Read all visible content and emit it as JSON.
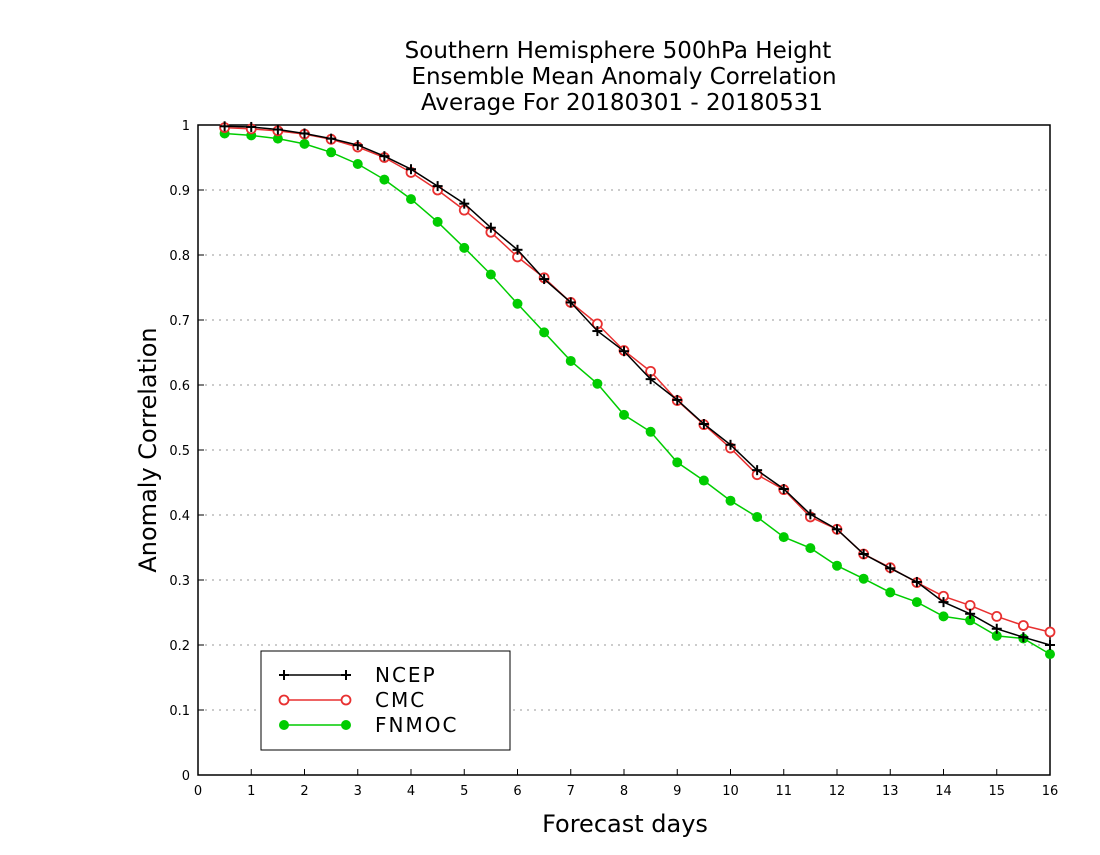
{
  "chart_data": {
    "type": "line",
    "title": [
      "Southern Hemisphere 500hPa Height",
      "Ensemble Mean Anomaly Correlation",
      "Average For 20180301 - 20180531"
    ],
    "xlabel": "Forecast days",
    "ylabel": "Anomaly Correlation",
    "xlim": [
      0,
      16
    ],
    "ylim": [
      0,
      1
    ],
    "xticks": [
      0,
      1,
      2,
      3,
      4,
      5,
      6,
      7,
      8,
      9,
      10,
      11,
      12,
      13,
      14,
      15,
      16
    ],
    "yticks": [
      0,
      0.1,
      0.2,
      0.3,
      0.4,
      0.5,
      0.6,
      0.7,
      0.8,
      0.9,
      1
    ],
    "ytick_labels": [
      "0",
      "0.1",
      "0.2",
      "0.3",
      "0.4",
      "0.5",
      "0.6",
      "0.7",
      "0.8",
      "0.9",
      "1"
    ],
    "grid": "horizontal dotted",
    "legend_position": "bottom-left",
    "x": [
      0.5,
      1,
      1.5,
      2,
      2.5,
      3,
      3.5,
      4,
      4.5,
      5,
      5.5,
      6,
      6.5,
      7,
      7.5,
      8,
      8.5,
      9,
      9.5,
      10,
      10.5,
      11,
      11.5,
      12,
      12.5,
      13,
      13.5,
      14,
      14.5,
      15,
      15.5,
      16
    ],
    "series": [
      {
        "name": "NCEP",
        "color": "#000000",
        "marker": "plus",
        "values": [
          0.998,
          0.997,
          0.993,
          0.987,
          0.979,
          0.969,
          0.952,
          0.932,
          0.906,
          0.879,
          0.842,
          0.808,
          0.763,
          0.727,
          0.683,
          0.652,
          0.609,
          0.577,
          0.54,
          0.508,
          0.469,
          0.44,
          0.401,
          0.378,
          0.34,
          0.318,
          0.297,
          0.266,
          0.248,
          0.225,
          0.212,
          0.2
        ]
      },
      {
        "name": "CMC",
        "color": "#e83030",
        "marker": "open-circle",
        "values": [
          0.996,
          0.994,
          0.991,
          0.986,
          0.978,
          0.966,
          0.95,
          0.927,
          0.9,
          0.869,
          0.835,
          0.797,
          0.765,
          0.727,
          0.694,
          0.653,
          0.621,
          0.576,
          0.539,
          0.503,
          0.462,
          0.439,
          0.397,
          0.378,
          0.34,
          0.319,
          0.296,
          0.275,
          0.261,
          0.244,
          0.23,
          0.22
        ]
      },
      {
        "name": "FNMOC",
        "color": "#00cc00",
        "marker": "filled-circle",
        "values": [
          0.987,
          0.984,
          0.979,
          0.971,
          0.958,
          0.94,
          0.916,
          0.886,
          0.851,
          0.811,
          0.77,
          0.725,
          0.681,
          0.637,
          0.602,
          0.554,
          0.528,
          0.481,
          0.453,
          0.422,
          0.397,
          0.366,
          0.349,
          0.322,
          0.302,
          0.281,
          0.266,
          0.244,
          0.238,
          0.214,
          0.21,
          0.186
        ]
      }
    ]
  }
}
